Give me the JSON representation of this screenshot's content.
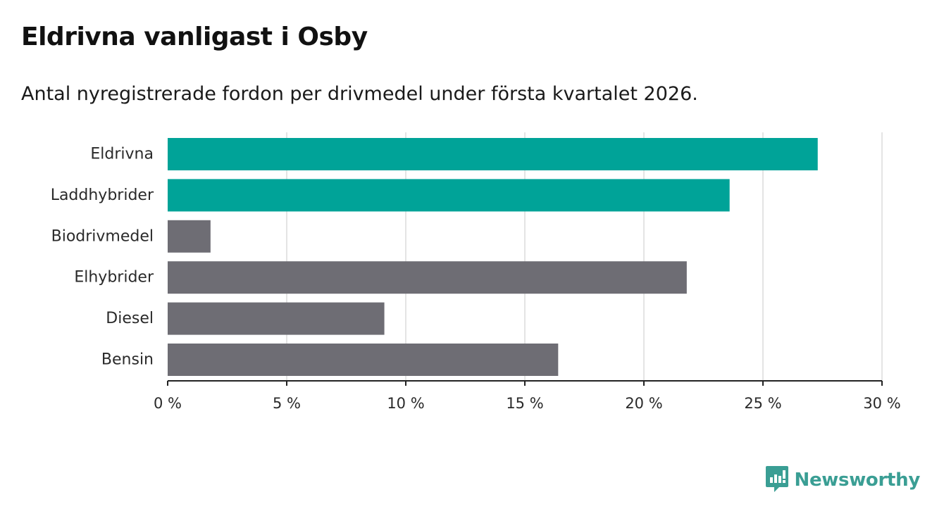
{
  "colors": {
    "highlight": "#00a398",
    "neutral": "#6e6d74",
    "grid": "#dcdcdc",
    "axis": "#222222",
    "brand": "#3a9e94"
  },
  "chart_data": {
    "type": "bar",
    "orientation": "horizontal",
    "title": "Eldrivna vanligast i Osby",
    "subtitle": "Antal nyregistrerade fordon per drivmedel under första kvartalet 2026.",
    "categories": [
      "Eldrivna",
      "Laddhybrider",
      "Biodrivmedel",
      "Elhybrider",
      "Diesel",
      "Bensin"
    ],
    "values": [
      27.3,
      23.6,
      1.8,
      21.8,
      9.1,
      16.4
    ],
    "highlighted": [
      true,
      true,
      false,
      false,
      false,
      false
    ],
    "unit": "%",
    "xlim": [
      0,
      30
    ],
    "xticks": [
      0,
      5,
      10,
      15,
      20,
      25,
      30
    ],
    "xtick_labels": [
      "0 %",
      "5 %",
      "10 %",
      "15 %",
      "20 %",
      "25 %",
      "30 %"
    ],
    "grid": true,
    "xlabel": "",
    "ylabel": ""
  },
  "brand": {
    "name": "Newsworthy",
    "icon": "newsworthy-logo-icon"
  }
}
